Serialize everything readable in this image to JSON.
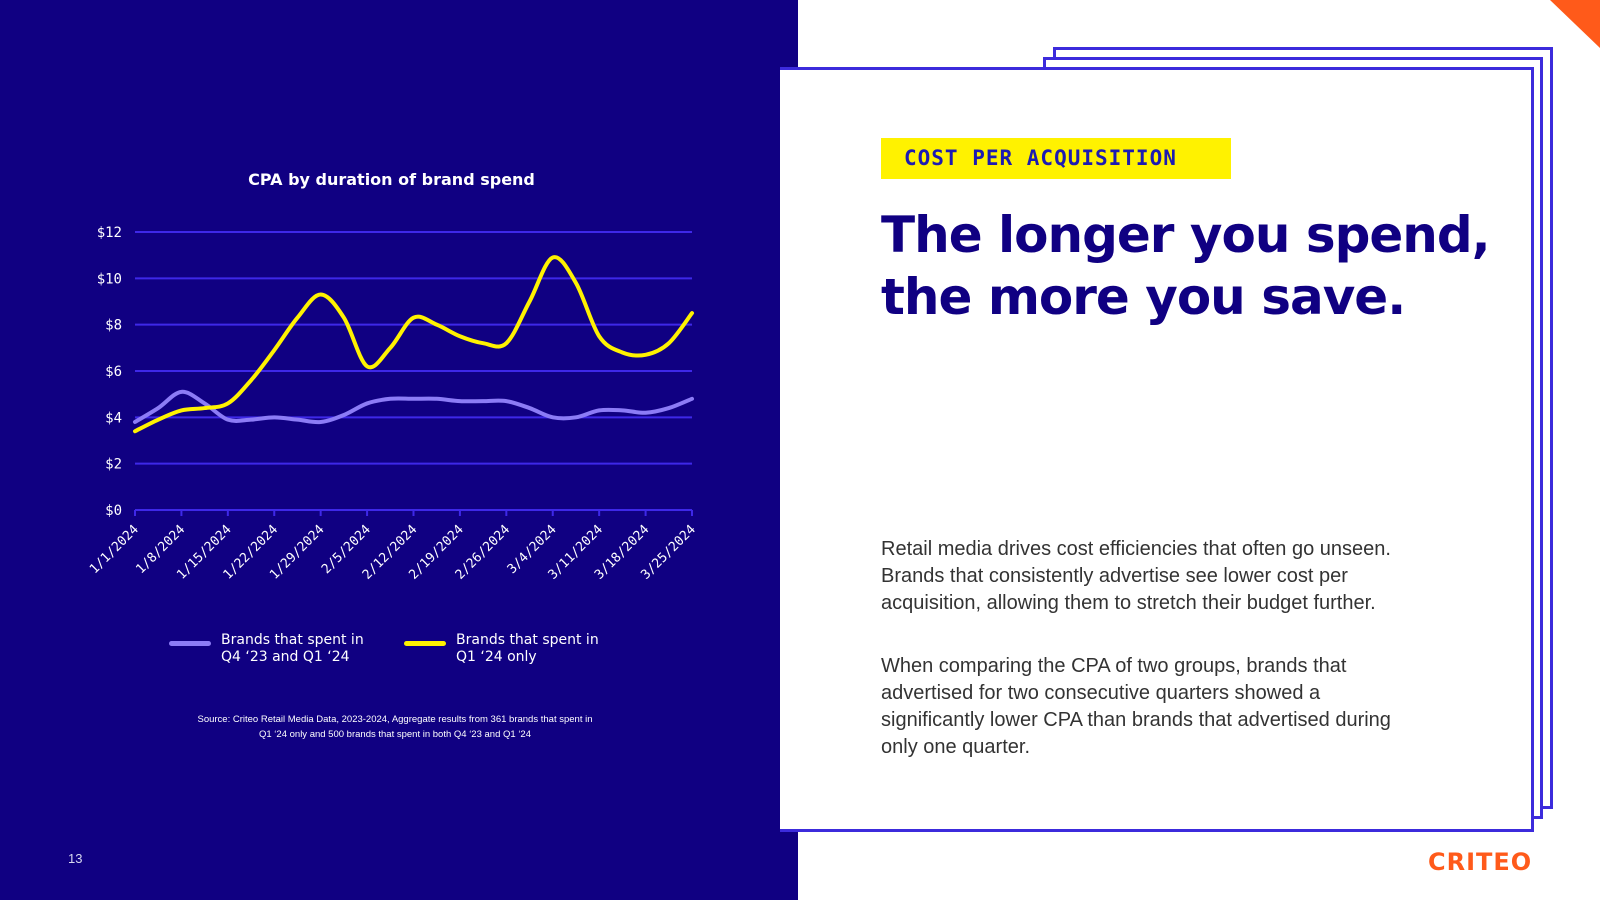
{
  "page_number": "13",
  "logo_text": "CRITEO",
  "tag": "COST PER ACQUISITION",
  "headline": "The longer you spend, the more you save.",
  "body": [
    "Retail media drives cost efficiencies that often go unseen. Brands that consistently advertise see lower cost per acquisition, allowing them to stretch their budget further.",
    "When comparing the CPA of two groups, brands that advertised for two consecutive quarters showed a significantly lower CPA than brands that advertised during only one quarter."
  ],
  "source": "Source: Criteo Retail Media Data, 2023-2024, Aggregate results from 361 brands that spent in Q1 ‘24 only and 500 brands that spent in both Q4 ‘23 and Q1 ‘24",
  "colors": {
    "panel_bg": "#100082",
    "gridline": "#3e28e8",
    "series_consecutive": "#8c7cf6",
    "series_q1_only": "#fff200",
    "tag_bg": "#fff200",
    "frame_border": "#3c2bdc",
    "accent_orange": "#ff5a1a"
  },
  "chart_data": {
    "type": "line",
    "title": "CPA by duration of brand spend",
    "xlabel": "",
    "ylabel": "",
    "x": [
      "1/1/2024",
      "1/4/2024",
      "1/8/2024",
      "1/11/2024",
      "1/15/2024",
      "1/18/2024",
      "1/22/2024",
      "1/25/2024",
      "1/29/2024",
      "2/1/2024",
      "2/5/2024",
      "2/8/2024",
      "2/12/2024",
      "2/15/2024",
      "2/19/2024",
      "2/22/2024",
      "2/26/2024",
      "2/29/2024",
      "3/4/2024",
      "3/7/2024",
      "3/11/2024",
      "3/14/2024",
      "3/18/2024",
      "3/21/2024",
      "3/25/2024"
    ],
    "x_tick_labels": [
      "1/1/2024",
      "1/8/2024",
      "1/15/2024",
      "1/22/2024",
      "1/29/2024",
      "2/5/2024",
      "2/12/2024",
      "2/19/2024",
      "2/26/2024",
      "3/4/2024",
      "3/11/2024",
      "3/18/2024",
      "3/25/2024"
    ],
    "y_ticks": [
      0,
      2,
      4,
      6,
      8,
      10,
      12
    ],
    "y_tick_labels": [
      "$0",
      "$2",
      "$4",
      "$6",
      "$8",
      "$10",
      "$12"
    ],
    "ylim": [
      0,
      12
    ],
    "grid": true,
    "legend_position": "bottom",
    "series": [
      {
        "name": "Brands that spent in\nQ4 ‘23 and Q1 ‘24",
        "values": [
          3.8,
          4.4,
          5.1,
          4.6,
          3.9,
          3.9,
          4.0,
          3.9,
          3.8,
          4.1,
          4.6,
          4.8,
          4.8,
          4.8,
          4.7,
          4.7,
          4.7,
          4.4,
          4.0,
          4.0,
          4.3,
          4.3,
          4.2,
          4.4,
          4.8
        ]
      },
      {
        "name": "Brands that spent in\nQ1 ‘24 only",
        "values": [
          3.4,
          3.9,
          4.3,
          4.4,
          4.6,
          5.6,
          6.9,
          8.3,
          9.3,
          8.3,
          6.2,
          7.0,
          8.3,
          8.0,
          7.5,
          7.2,
          7.2,
          9.0,
          10.9,
          9.8,
          7.5,
          6.8,
          6.7,
          7.2,
          8.5
        ]
      }
    ]
  }
}
